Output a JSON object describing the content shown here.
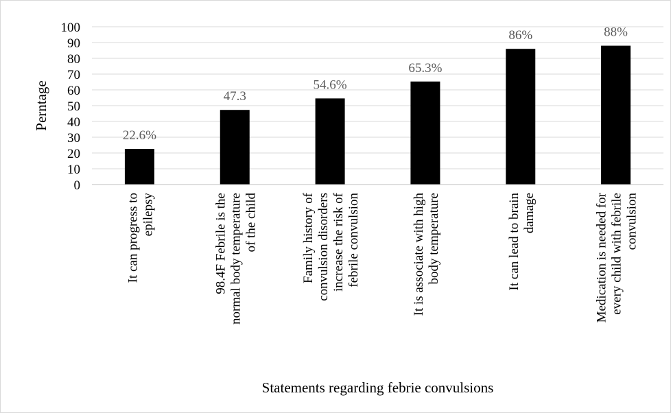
{
  "chart_data": {
    "type": "bar",
    "title": "",
    "xlabel": "Statements regarding febrie convulsions",
    "ylabel": "Perntage",
    "ylim": [
      0,
      100
    ],
    "yticks": [
      0,
      10,
      20,
      30,
      40,
      50,
      60,
      70,
      80,
      90,
      100
    ],
    "grid": true,
    "legend": "none",
    "bar_color": "#000000",
    "categories": [
      [
        "It can progress to",
        "epilepsy"
      ],
      [
        "98.4F Febrile is the",
        "normal body temperature",
        "of the child"
      ],
      [
        "Family history of",
        "convulsion disorders",
        "increase the risk of",
        "febrile convulsion"
      ],
      [
        "It is associate with high",
        "body temperature"
      ],
      [
        "It can lead to brain",
        "damage"
      ],
      [
        "Medication is needed for",
        "every child with febrile",
        "convulsion"
      ]
    ],
    "values": [
      22.6,
      47.3,
      54.6,
      65.3,
      86,
      88
    ],
    "data_labels": [
      "22.6%",
      "47.3",
      "54.6%",
      "65.3%",
      "86%",
      "88%"
    ]
  }
}
